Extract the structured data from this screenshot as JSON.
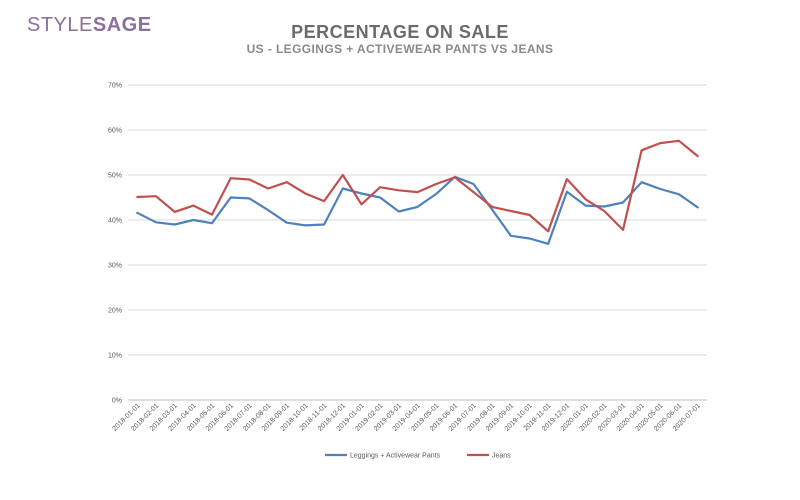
{
  "brand": {
    "part1": "STYLE",
    "part2": "SAGE"
  },
  "colors": {
    "leggings": "#4f81bd",
    "jeans": "#c0504d",
    "grid": "#d9d9d9",
    "logo": "#8b6f9c"
  },
  "chart_data": {
    "type": "line",
    "title": "PERCENTAGE ON SALE",
    "subtitle": "US - LEGGINGS + ACTIVEWEAR PANTS VS JEANS",
    "xlabel": "",
    "ylabel": "",
    "ylim": [
      0,
      70
    ],
    "yticks": [
      "0%",
      "10%",
      "20%",
      "30%",
      "40%",
      "50%",
      "60%",
      "70%"
    ],
    "grid": true,
    "legend_position": "bottom",
    "x": [
      "2018-01-01",
      "2018-02-01",
      "2018-03-01",
      "2018-04-01",
      "2018-05-01",
      "2018-06-01",
      "2018-07-01",
      "2018-08-01",
      "2018-09-01",
      "2018-10-01",
      "2018-11-01",
      "2018-12-01",
      "2019-01-01",
      "2019-02-01",
      "2019-03-01",
      "2019-04-01",
      "2019-05-01",
      "2019-06-01",
      "2019-07-01",
      "2019-08-01",
      "2019-09-01",
      "2019-10-01",
      "2019-11-01",
      "2019-12-01",
      "2020-01-01",
      "2020-02-01",
      "2020-03-01",
      "2020-04-01",
      "2020-05-01",
      "2020-06-01",
      "2020-07-01"
    ],
    "series": [
      {
        "name": "Leggings + Activewear Pants",
        "color": "#4f81bd",
        "values": [
          41.6,
          39.5,
          39.0,
          40.0,
          39.3,
          45.0,
          44.8,
          42.2,
          39.4,
          38.8,
          39.0,
          47.0,
          45.9,
          45.0,
          41.9,
          42.9,
          45.8,
          49.6,
          48.0,
          42.3,
          36.5,
          35.9,
          34.7,
          46.3,
          43.2,
          43.0,
          43.9,
          48.4,
          46.9,
          45.7,
          42.8
        ]
      },
      {
        "name": "Jeans",
        "color": "#c0504d",
        "values": [
          45.1,
          45.3,
          41.8,
          43.2,
          41.2,
          49.3,
          49.0,
          47.0,
          48.4,
          45.9,
          44.2,
          50.0,
          43.5,
          47.3,
          46.6,
          46.2,
          48.0,
          49.5,
          46.2,
          42.9,
          42.0,
          41.1,
          37.5,
          49.1,
          44.6,
          42.0,
          37.8,
          55.5,
          57.1,
          57.6,
          54.2
        ]
      }
    ]
  }
}
